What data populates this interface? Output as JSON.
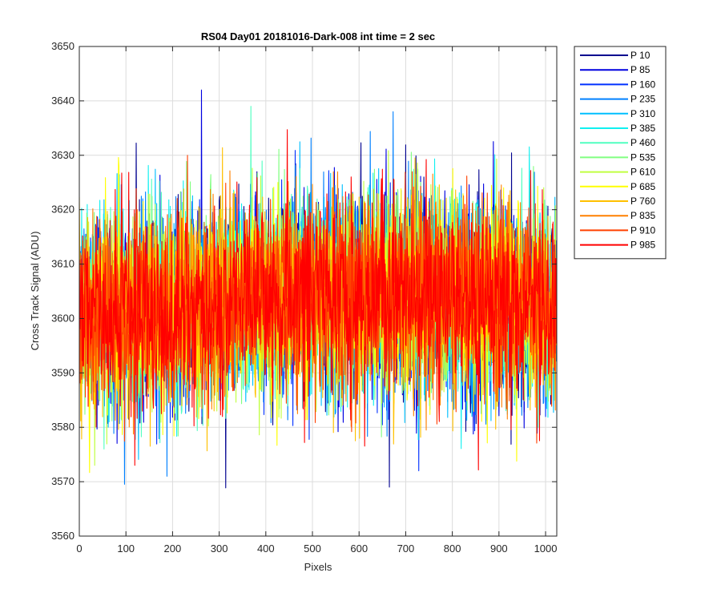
{
  "chart_data": {
    "type": "line",
    "title": "RS04 Day01 20181016-Dark-008 int time = 2 sec",
    "xlabel": "Pixels",
    "ylabel": "Cross Track Signal (ADU)",
    "xlim": [
      0,
      1024
    ],
    "ylim": [
      3560,
      3650
    ],
    "xticks": [
      0,
      100,
      200,
      300,
      400,
      500,
      600,
      700,
      800,
      900,
      1000
    ],
    "yticks": [
      3560,
      3570,
      3580,
      3590,
      3600,
      3610,
      3620,
      3630,
      3640,
      3650
    ],
    "grid": true,
    "legend_position": "outside-top-right",
    "noise_profile": {
      "x": [
        0,
        100,
        200,
        300,
        400,
        500,
        600,
        700,
        800,
        900,
        1000,
        1024
      ],
      "mean": [
        3601,
        3601,
        3602,
        3603,
        3604,
        3605,
        3605,
        3605,
        3604,
        3603,
        3602,
        3602
      ],
      "typical_range": [
        [
          3585,
          3620
        ],
        [
          3585,
          3620
        ],
        [
          3585,
          3620
        ],
        [
          3587,
          3622
        ],
        [
          3588,
          3623
        ],
        [
          3588,
          3624
        ],
        [
          3588,
          3624
        ],
        [
          3588,
          3624
        ],
        [
          3587,
          3622
        ],
        [
          3585,
          3620
        ],
        [
          3585,
          3620
        ],
        [
          3585,
          3620
        ]
      ]
    },
    "series": [
      {
        "name": "P 10",
        "color": "#00008F"
      },
      {
        "name": "P 85",
        "color": "#0000E0"
      },
      {
        "name": "P 160",
        "color": "#0030FF"
      },
      {
        "name": "P 235",
        "color": "#0080FF"
      },
      {
        "name": "P 310",
        "color": "#00BFFF"
      },
      {
        "name": "P 385",
        "color": "#10F0F0"
      },
      {
        "name": "P 460",
        "color": "#50FFC0"
      },
      {
        "name": "P 535",
        "color": "#80FF80"
      },
      {
        "name": "P 610",
        "color": "#C0FF40"
      },
      {
        "name": "P 685",
        "color": "#FFFF00"
      },
      {
        "name": "P 760",
        "color": "#FFC000"
      },
      {
        "name": "P 835",
        "color": "#FF8000"
      },
      {
        "name": "P 910",
        "color": "#FF4000"
      },
      {
        "name": "P 985",
        "color": "#FF0000"
      }
    ],
    "annotated_extremes": [
      {
        "series": "P 85",
        "x": 262,
        "y": 3642
      },
      {
        "series": "P 460",
        "x": 368,
        "y": 3639
      },
      {
        "series": "P 235",
        "x": 673,
        "y": 3638
      },
      {
        "series": "P 10",
        "x": 665,
        "y": 3569
      },
      {
        "series": "P 235",
        "x": 188,
        "y": 3571
      },
      {
        "series": "P 160",
        "x": 728,
        "y": 3572
      },
      {
        "series": "P 610",
        "x": 33,
        "y": 3573
      },
      {
        "series": "P 985",
        "x": 119,
        "y": 3573
      }
    ]
  }
}
